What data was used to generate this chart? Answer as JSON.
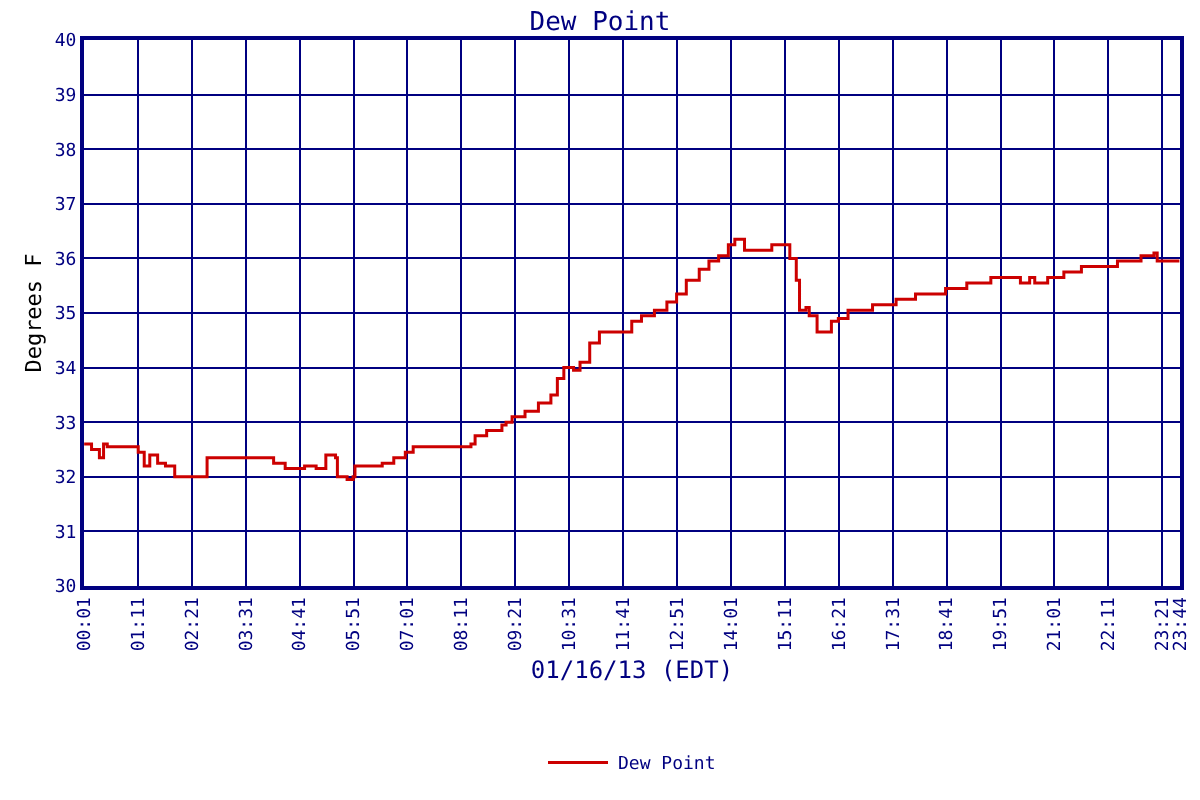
{
  "chart_data": {
    "type": "step",
    "title": "Dew Point",
    "xlabel": "01/16/13 (EDT)",
    "ylabel": "Degrees F",
    "xlim": [
      0.0167,
      23.7333
    ],
    "ylim": [
      30,
      40
    ],
    "yticks": [
      30,
      31,
      32,
      33,
      34,
      35,
      36,
      37,
      38,
      39,
      40
    ],
    "xticks": [
      {
        "value": 0.0167,
        "label": "00:01"
      },
      {
        "value": 1.1833,
        "label": "01:11"
      },
      {
        "value": 2.35,
        "label": "02:21"
      },
      {
        "value": 3.5167,
        "label": "03:31"
      },
      {
        "value": 4.6833,
        "label": "04:41"
      },
      {
        "value": 5.85,
        "label": "05:51"
      },
      {
        "value": 7.0167,
        "label": "07:01"
      },
      {
        "value": 8.1833,
        "label": "08:11"
      },
      {
        "value": 9.35,
        "label": "09:21"
      },
      {
        "value": 10.5167,
        "label": "10:31"
      },
      {
        "value": 11.6833,
        "label": "11:41"
      },
      {
        "value": 12.85,
        "label": "12:51"
      },
      {
        "value": 14.0167,
        "label": "14:01"
      },
      {
        "value": 15.1833,
        "label": "15:11"
      },
      {
        "value": 16.35,
        "label": "16:21"
      },
      {
        "value": 17.5167,
        "label": "17:31"
      },
      {
        "value": 18.6833,
        "label": "18:41"
      },
      {
        "value": 19.85,
        "label": "19:51"
      },
      {
        "value": 21.0167,
        "label": "21:01"
      },
      {
        "value": 22.1833,
        "label": "22:11"
      },
      {
        "value": 23.35,
        "label": "23:21"
      },
      {
        "value": 23.7333,
        "label": "23:44"
      }
    ],
    "grid": true,
    "legend": "bottom",
    "series": [
      {
        "name": "Dew Point",
        "color": "#cc0000",
        "x": [
          0.02,
          0.18,
          0.35,
          0.44,
          0.52,
          1.11,
          1.19,
          1.32,
          1.44,
          1.61,
          1.78,
          1.98,
          2.68,
          4.04,
          4.12,
          4.37,
          4.79,
          5.04,
          5.25,
          5.46,
          5.5,
          5.71,
          5.84,
          5.88,
          6.13,
          6.47,
          6.72,
          6.97,
          7.14,
          8.39,
          8.48,
          8.73,
          9.06,
          9.15,
          9.28,
          9.56,
          9.85,
          10.12,
          10.26,
          10.4,
          10.61,
          10.75,
          10.96,
          11.17,
          11.66,
          11.87,
          12.08,
          12.36,
          12.63,
          12.84,
          13.05,
          13.33,
          13.54,
          13.75,
          13.96,
          14.1,
          14.31,
          14.9,
          15.15,
          15.29,
          15.43,
          15.5,
          15.64,
          15.71,
          15.88,
          16.19,
          16.34,
          16.55,
          17.08,
          17.59,
          18.01,
          18.66,
          19.12,
          19.64,
          20.28,
          20.48,
          20.59,
          20.87,
          21.22,
          21.6,
          22.38,
          22.89,
          23.17,
          23.24,
          23.72
        ],
        "values": [
          32.6,
          32.5,
          32.35,
          32.6,
          32.55,
          32.55,
          32.45,
          32.2,
          32.4,
          32.25,
          32.2,
          32.0,
          32.35,
          32.35,
          32.25,
          32.15,
          32.2,
          32.15,
          32.4,
          32.35,
          32.0,
          31.95,
          32.0,
          32.2,
          32.2,
          32.25,
          32.35,
          32.45,
          32.55,
          32.6,
          32.75,
          32.85,
          32.95,
          33.0,
          33.1,
          33.2,
          33.35,
          33.5,
          33.8,
          34.0,
          33.95,
          34.1,
          34.45,
          34.65,
          34.65,
          34.85,
          34.95,
          35.05,
          35.2,
          35.35,
          35.6,
          35.8,
          35.95,
          36.05,
          36.25,
          36.35,
          36.15,
          36.25,
          36.25,
          36.0,
          35.6,
          35.05,
          35.1,
          34.95,
          34.65,
          34.85,
          34.9,
          35.05,
          35.15,
          35.25,
          35.35,
          35.45,
          35.55,
          35.65,
          35.55,
          35.65,
          35.55,
          35.65,
          35.75,
          35.85,
          35.95,
          36.05,
          36.1,
          35.95,
          35.95
        ]
      }
    ]
  }
}
